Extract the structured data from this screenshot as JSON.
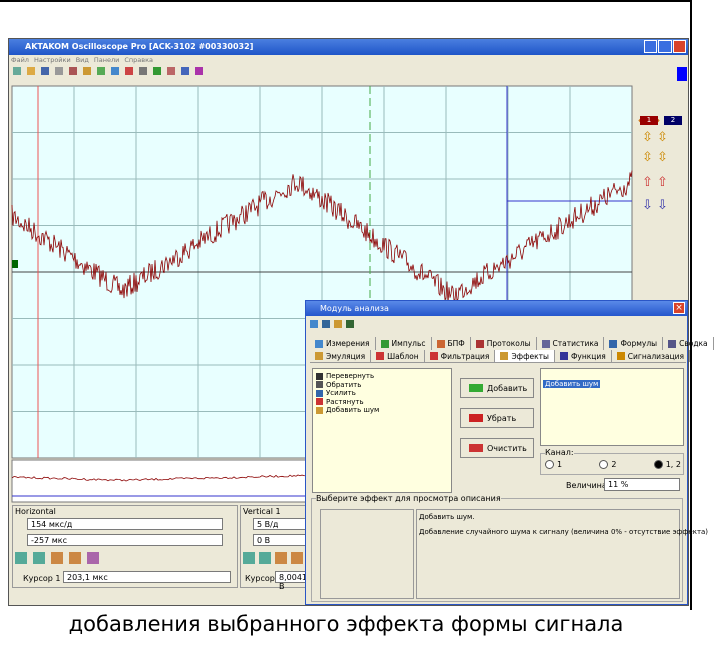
{
  "window": {
    "title": "AKTAKOM Oscilloscope Pro [ACK-3102 #00330032]",
    "menu": [
      "Файл",
      "Настройки",
      "Вид",
      "Панели",
      "Справка"
    ]
  },
  "side_panel": {
    "channels": [
      "1",
      "2"
    ]
  },
  "horizontal": {
    "title": "Horizontal",
    "scale": "154 мкс/д",
    "offset": "-257 мкс",
    "cursor_label": "Курсор 1",
    "cursor_value": "203,1 мкс"
  },
  "vertical": {
    "title": "Vertical 1",
    "scale": "5 В/д",
    "offset": "0 В",
    "cursor_label": "Курсор 1",
    "cursor_value": "8,0041 В"
  },
  "dialog": {
    "title": "Модуль анализа",
    "tabs_row1": [
      "Измерения",
      "Импульс",
      "БПФ",
      "Протоколы",
      "Статистика",
      "Формулы",
      "Сводка"
    ],
    "tabs_row2": [
      "Эмуляция",
      "Шаблон",
      "Фильтрация",
      "Эффекты",
      "Функция",
      "Сигнализация"
    ],
    "effects": [
      "Перевернуть",
      "Обратить",
      "Усилить",
      "Растянуть",
      "Добавить шум"
    ],
    "buttons": [
      "Добавить",
      "Убрать",
      "Очистить"
    ],
    "selected": [
      "Добавить шум"
    ],
    "channel_label": "Канал:",
    "channel_options": [
      "1",
      "2",
      "1, 2"
    ],
    "amount_label": "Величина",
    "amount_value": "11 %",
    "description_group": "Выберите эффект для просмотра описания",
    "description_title": "Добавить шум.",
    "description_text": "Добавление случайного шума к сигналу (величина 0% - отсутствие эффекта)"
  },
  "caption": "добавления выбранного эффекта формы сигнала"
}
